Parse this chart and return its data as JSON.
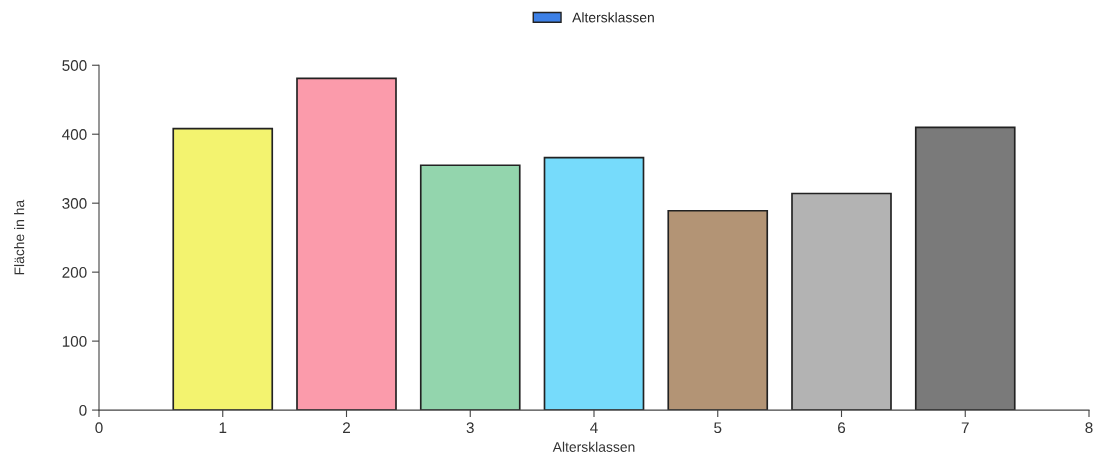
{
  "chart_data": {
    "type": "bar",
    "xlabel": "Altersklassen",
    "ylabel": "Fläche in ha",
    "x": [
      1,
      2,
      3,
      4,
      5,
      6,
      7
    ],
    "series": [
      {
        "name": "Altersklassen",
        "color": "#3d80e6",
        "colors": [
          "#f3f36f",
          "#fb9bab",
          "#93d5ad",
          "#76dbfb",
          "#b39475",
          "#b3b3b3",
          "#7a7a7a"
        ],
        "values": [
          408,
          481,
          355,
          366,
          289,
          314,
          410
        ]
      }
    ],
    "xlim": [
      0,
      8
    ],
    "xticks": [
      0,
      1,
      2,
      3,
      4,
      5,
      6,
      7,
      8
    ],
    "ylim": [
      0,
      500
    ],
    "yticks": [
      0,
      100,
      200,
      300,
      400,
      500
    ],
    "grid": false,
    "legend": "top"
  }
}
